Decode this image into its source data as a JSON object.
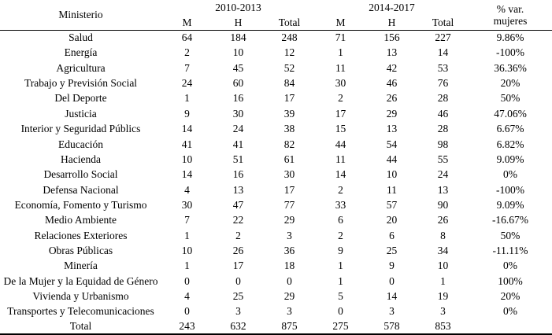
{
  "colors": {
    "background": "#ffffff",
    "text": "#000000",
    "border": "#000000"
  },
  "table": {
    "header": {
      "ministerio": "Ministerio",
      "period1": "2010-2013",
      "period2": "2014-2017",
      "pct_var_line1": "% var.",
      "pct_var_line2": "mujeres"
    },
    "sub_headers": [
      "M",
      "H",
      "Total",
      "M",
      "H",
      "Total"
    ],
    "rows": [
      {
        "ministerio": "Salud",
        "values": [
          "64",
          "184",
          "248",
          "71",
          "156",
          "227",
          "9.86%"
        ]
      },
      {
        "ministerio": "Energía",
        "values": [
          "2",
          "10",
          "12",
          "1",
          "13",
          "14",
          "-100%"
        ]
      },
      {
        "ministerio": "Agricultura",
        "values": [
          "7",
          "45",
          "52",
          "11",
          "42",
          "53",
          "36.36%"
        ]
      },
      {
        "ministerio": "Trabajo y Previsión Social",
        "values": [
          "24",
          "60",
          "84",
          "30",
          "46",
          "76",
          "20%"
        ]
      },
      {
        "ministerio": "Del Deporte",
        "values": [
          "1",
          "16",
          "17",
          "2",
          "26",
          "28",
          "50%"
        ]
      },
      {
        "ministerio": "Justicia",
        "values": [
          "9",
          "30",
          "39",
          "17",
          "29",
          "46",
          "47.06%"
        ]
      },
      {
        "ministerio": "Interior y Seguridad Públics",
        "values": [
          "14",
          "24",
          "38",
          "15",
          "13",
          "28",
          "6.67%"
        ]
      },
      {
        "ministerio": "Educación",
        "values": [
          "41",
          "41",
          "82",
          "44",
          "54",
          "98",
          "6.82%"
        ]
      },
      {
        "ministerio": "Hacienda",
        "values": [
          "10",
          "51",
          "61",
          "11",
          "44",
          "55",
          "9.09%"
        ]
      },
      {
        "ministerio": "Desarrollo Social",
        "values": [
          "14",
          "16",
          "30",
          "14",
          "10",
          "24",
          "0%"
        ]
      },
      {
        "ministerio": "Defensa Nacional",
        "values": [
          "4",
          "13",
          "17",
          "2",
          "11",
          "13",
          "-100%"
        ]
      },
      {
        "ministerio": "Economía, Fomento y Turismo",
        "values": [
          "30",
          "47",
          "77",
          "33",
          "57",
          "90",
          "9.09%"
        ]
      },
      {
        "ministerio": "Medio Ambiente",
        "values": [
          "7",
          "22",
          "29",
          "6",
          "20",
          "26",
          "-16.67%"
        ]
      },
      {
        "ministerio": "Relaciones Exteriores",
        "values": [
          "1",
          "2",
          "3",
          "2",
          "6",
          "8",
          "50%"
        ]
      },
      {
        "ministerio": "Obras Públicas",
        "values": [
          "10",
          "26",
          "36",
          "9",
          "25",
          "34",
          "-11.11%"
        ]
      },
      {
        "ministerio": "Minería",
        "values": [
          "1",
          "17",
          "18",
          "1",
          "9",
          "10",
          "0%"
        ]
      },
      {
        "ministerio": "De la Mujer y la Equidad de Género",
        "values": [
          "0",
          "0",
          "0",
          "1",
          "0",
          "1",
          "100%"
        ]
      },
      {
        "ministerio": "Vivienda y Urbanismo",
        "values": [
          "4",
          "25",
          "29",
          "5",
          "14",
          "19",
          "20%"
        ]
      },
      {
        "ministerio": "Transportes y Telecomunicaciones",
        "values": [
          "0",
          "3",
          "3",
          "0",
          "3",
          "3",
          "0%"
        ]
      },
      {
        "ministerio": "Total",
        "values": [
          "243",
          "632",
          "875",
          "275",
          "578",
          "853",
          ""
        ]
      }
    ]
  }
}
